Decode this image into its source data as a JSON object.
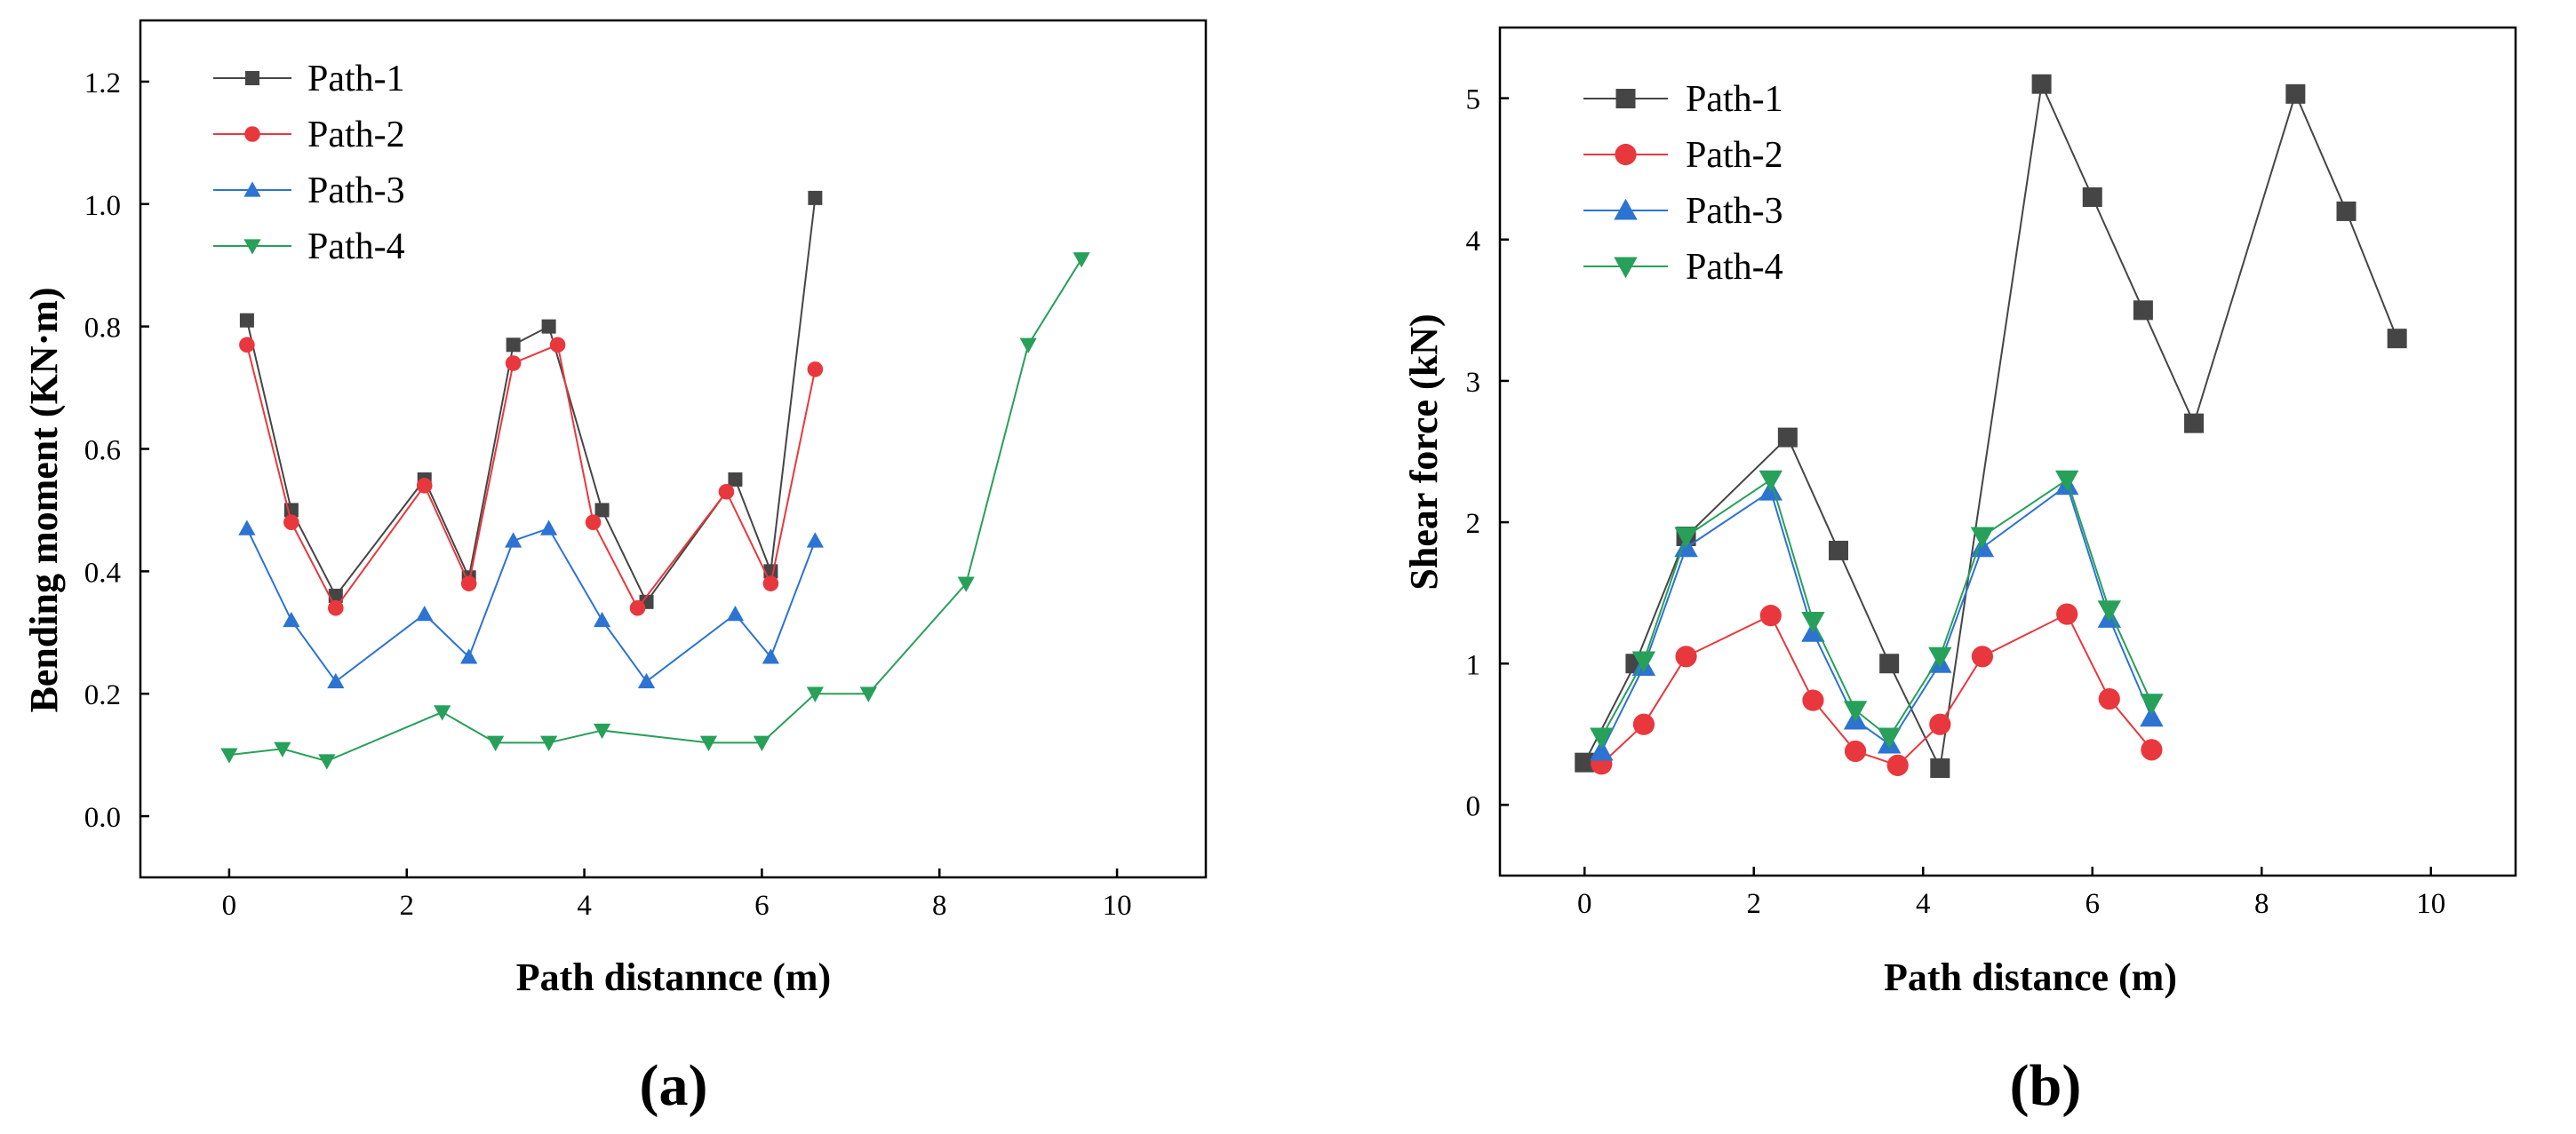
{
  "colors": {
    "path1": "#454545",
    "path2": "#e8383d",
    "path3": "#2c73d2",
    "path4": "#27a05a"
  },
  "chart_data": [
    {
      "type": "line",
      "panel_label": "(a)",
      "xlabel": "Path distannce (m)",
      "ylabel": "Bending moment (KN·m)",
      "xlim": [
        -1,
        11
      ],
      "ylim": [
        -0.1,
        1.3
      ],
      "xticks": [
        0,
        2,
        4,
        6,
        8,
        10
      ],
      "xtick_labels": [
        "0",
        "2",
        "4",
        "6",
        "8",
        "10"
      ],
      "yticks": [
        0,
        0.2,
        0.4,
        0.6,
        0.8,
        1.0,
        1.2
      ],
      "ytick_labels": [
        "0.0",
        "0.2",
        "0.4",
        "0.6",
        "0.8",
        "1.0",
        "1.2"
      ],
      "legend_position": "top-left",
      "series": [
        {
          "name": "Path-1",
          "marker": "square",
          "color": "#454545",
          "x": [
            0.2,
            0.7,
            1.2,
            2.2,
            2.7,
            3.2,
            3.6,
            4.2,
            4.7,
            5.7,
            6.1,
            6.6
          ],
          "y": [
            0.81,
            0.5,
            0.36,
            0.55,
            0.39,
            0.77,
            0.8,
            0.5,
            0.35,
            0.55,
            0.4,
            1.01
          ]
        },
        {
          "name": "Path-2",
          "marker": "circle",
          "color": "#e8383d",
          "x": [
            0.2,
            0.7,
            1.2,
            2.2,
            2.7,
            3.2,
            3.7,
            4.1,
            4.6,
            5.6,
            6.1,
            6.6
          ],
          "y": [
            0.77,
            0.48,
            0.34,
            0.54,
            0.38,
            0.74,
            0.77,
            0.48,
            0.34,
            0.53,
            0.38,
            0.73
          ]
        },
        {
          "name": "Path-3",
          "marker": "triangle-up",
          "color": "#2c73d2",
          "x": [
            0.2,
            0.7,
            1.2,
            2.2,
            2.7,
            3.2,
            3.6,
            4.2,
            4.7,
            5.7,
            6.1,
            6.6
          ],
          "y": [
            0.47,
            0.32,
            0.22,
            0.33,
            0.26,
            0.45,
            0.47,
            0.32,
            0.22,
            0.33,
            0.26,
            0.45
          ]
        },
        {
          "name": "Path-4",
          "marker": "triangle-down",
          "color": "#27a05a",
          "x": [
            0.0,
            0.6,
            1.1,
            2.4,
            3.0,
            3.6,
            4.2,
            5.4,
            6.0,
            6.6,
            7.2,
            8.3,
            9.0,
            9.6
          ],
          "y": [
            0.1,
            0.11,
            0.09,
            0.17,
            0.12,
            0.12,
            0.14,
            0.12,
            0.12,
            0.2,
            0.2,
            0.38,
            0.77,
            0.91
          ]
        }
      ]
    },
    {
      "type": "line",
      "panel_label": "(b)",
      "xlabel": "Path distance (m)",
      "ylabel": "Shear force (kN)",
      "xlim": [
        -1,
        11
      ],
      "ylim": [
        -0.5,
        5.5
      ],
      "xticks": [
        0,
        2,
        4,
        6,
        8,
        10
      ],
      "xtick_labels": [
        "0",
        "2",
        "4",
        "6",
        "8",
        "10"
      ],
      "yticks": [
        0,
        1,
        2,
        3,
        4,
        5
      ],
      "ytick_labels": [
        "0",
        "1",
        "2",
        "3",
        "4",
        "5"
      ],
      "legend_position": "top-left",
      "series": [
        {
          "name": "Path-1",
          "marker": "square",
          "color": "#454545",
          "x": [
            0.0,
            0.6,
            1.2,
            2.4,
            3.0,
            3.6,
            4.2,
            5.4,
            6.0,
            6.6,
            7.2,
            8.4,
            9.0,
            9.6
          ],
          "y": [
            0.3,
            1.0,
            1.9,
            2.6,
            1.8,
            1.0,
            0.26,
            5.1,
            4.3,
            3.5,
            2.7,
            5.03,
            4.2,
            3.3
          ]
        },
        {
          "name": "Path-2",
          "marker": "circle",
          "color": "#e8383d",
          "x": [
            0.2,
            0.7,
            1.2,
            2.2,
            2.7,
            3.2,
            3.7,
            4.2,
            4.7,
            5.7,
            6.2,
            6.7
          ],
          "y": [
            0.29,
            0.57,
            1.05,
            1.34,
            0.74,
            0.38,
            0.28,
            0.57,
            1.05,
            1.35,
            0.75,
            0.39
          ]
        },
        {
          "name": "Path-3",
          "marker": "triangle-up",
          "color": "#2c73d2",
          "x": [
            0.2,
            0.7,
            1.2,
            2.2,
            2.7,
            3.2,
            3.6,
            4.2,
            4.7,
            5.7,
            6.2,
            6.7
          ],
          "y": [
            0.38,
            0.98,
            1.82,
            2.22,
            1.22,
            0.6,
            0.43,
            1.0,
            1.82,
            2.26,
            1.32,
            0.62
          ]
        },
        {
          "name": "Path-4",
          "marker": "triangle-down",
          "color": "#27a05a",
          "x": [
            0.2,
            0.7,
            1.2,
            2.2,
            2.7,
            3.2,
            3.6,
            4.2,
            4.7,
            5.7,
            6.2,
            6.7
          ],
          "y": [
            0.48,
            1.02,
            1.9,
            2.3,
            1.3,
            0.67,
            0.48,
            1.05,
            1.9,
            2.3,
            1.38,
            0.72
          ]
        }
      ]
    }
  ]
}
